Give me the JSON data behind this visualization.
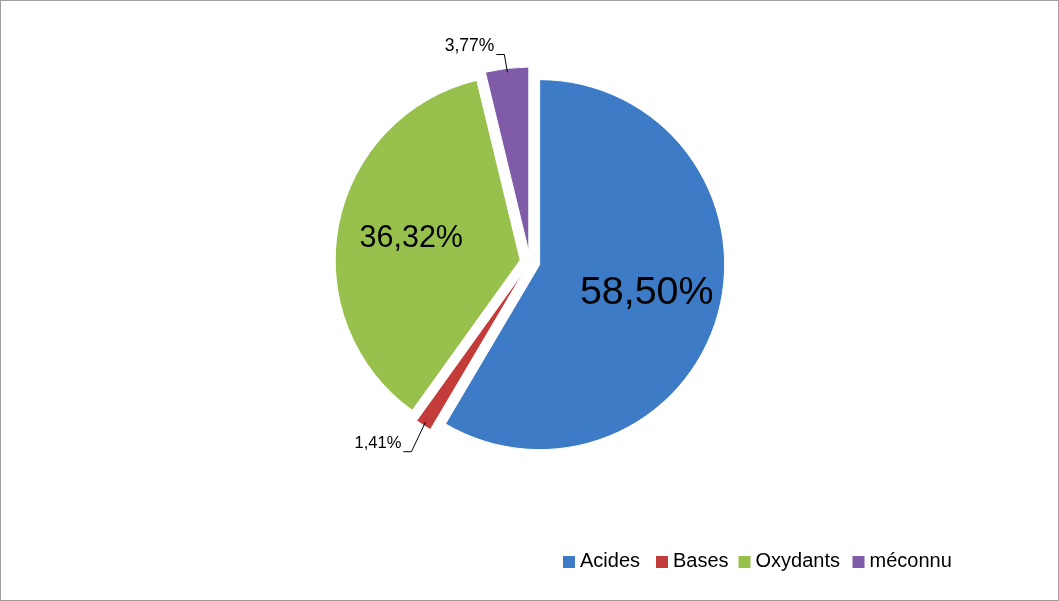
{
  "chart_data": {
    "type": "pie",
    "categories": [
      "Acides",
      "Bases",
      "Oxydants",
      "méconnu"
    ],
    "values": [
      58.5,
      1.41,
      36.32,
      3.77
    ],
    "colors": [
      "#3d7bc6",
      "#c43c39",
      "#98c04c",
      "#7f5ba8"
    ],
    "value_labels": [
      "58,50%",
      "1,41%",
      "36,32%",
      "3,77%"
    ],
    "legend": "bottom"
  }
}
